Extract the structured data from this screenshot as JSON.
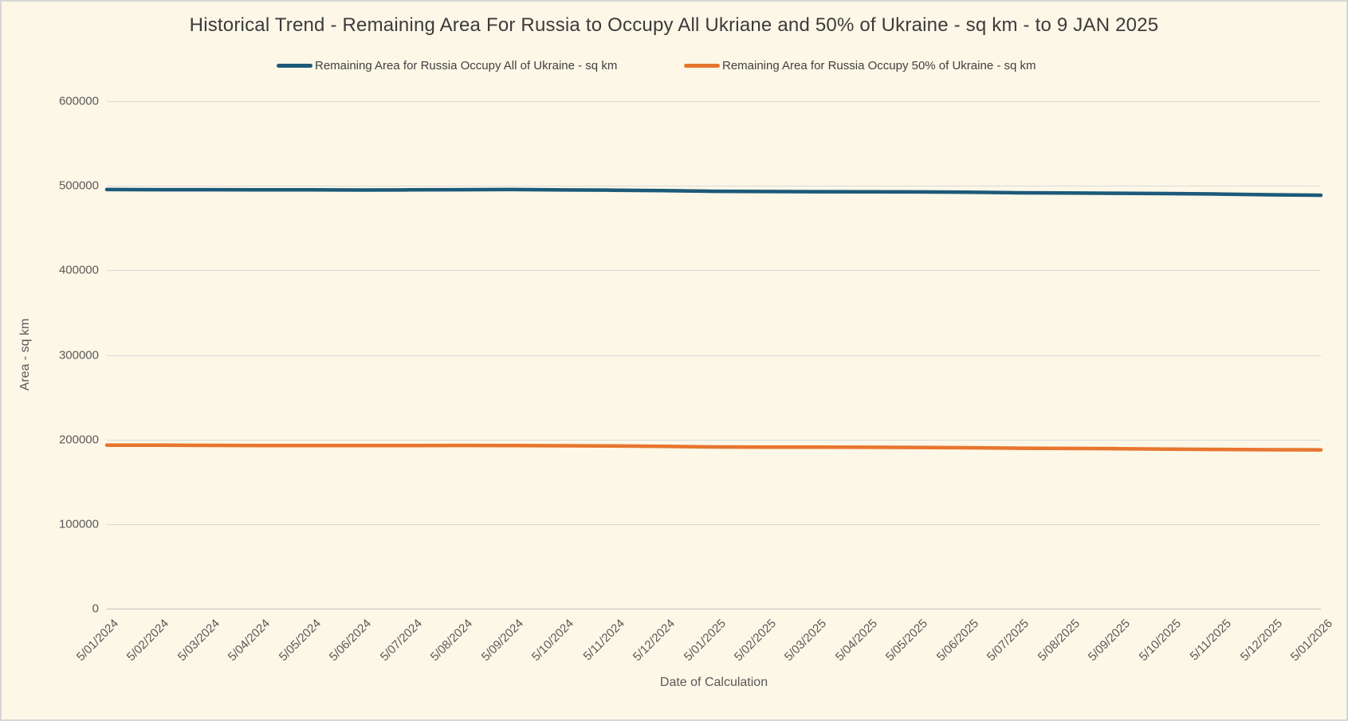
{
  "window": {
    "background_color": "#fdf7e7",
    "border_color": "#d7d7d9"
  },
  "chart": {
    "title": "Historical Trend - Remaining Area For Russia to Occupy All Ukriane and 50% of Ukraine - sq km - to 9 JAN 2025",
    "x_axis_title": "Date of Calculation",
    "y_axis_title": "Area - sq km"
  },
  "chart_data": {
    "type": "line",
    "title": "Historical Trend - Remaining Area For Russia to Occupy All Ukriane and 50% of Ukraine - sq km - to 9 JAN 2025",
    "xlabel": "Date of Calculation",
    "ylabel": "Area - sq km",
    "ylim": [
      0,
      600000
    ],
    "yticks": [
      0,
      100000,
      200000,
      300000,
      400000,
      500000,
      600000
    ],
    "grid": true,
    "legend_position": "top",
    "colors": {
      "grid": "#dadada",
      "axis_text": "#595959",
      "title_text": "#3b3b3b"
    },
    "categories": [
      "5/01/2024",
      "5/02/2024",
      "5/03/2024",
      "5/04/2024",
      "5/05/2024",
      "5/06/2024",
      "5/07/2024",
      "5/08/2024",
      "5/09/2024",
      "5/10/2024",
      "5/11/2024",
      "5/12/2024",
      "5/01/2025",
      "5/02/2025",
      "5/03/2025",
      "5/04/2025",
      "5/05/2025",
      "5/06/2025",
      "5/07/2025",
      "5/08/2025",
      "5/09/2025",
      "5/10/2025",
      "5/11/2025",
      "5/12/2025",
      "5/01/2026"
    ],
    "series": [
      {
        "name": "Remaining Area for Russia Occupy All of Ukraine - sq km",
        "color": "#1c5a7a",
        "values": [
          495500,
          495400,
          495400,
          495300,
          495200,
          495000,
          495200,
          495400,
          495500,
          495100,
          494800,
          494300,
          493500,
          493200,
          493000,
          492900,
          492700,
          492400,
          491700,
          491400,
          491100,
          490700,
          490200,
          489300,
          488800
        ]
      },
      {
        "name": "Remaining Area for Russia Occupy 50% of Ukraine - sq km",
        "color": "#e8752e",
        "values": [
          193400,
          193300,
          193100,
          192800,
          192900,
          192800,
          192900,
          193000,
          192900,
          192600,
          192300,
          191900,
          191200,
          191000,
          190900,
          190800,
          190600,
          190300,
          189700,
          189400,
          189100,
          188700,
          188300,
          187900,
          187700
        ]
      }
    ]
  }
}
